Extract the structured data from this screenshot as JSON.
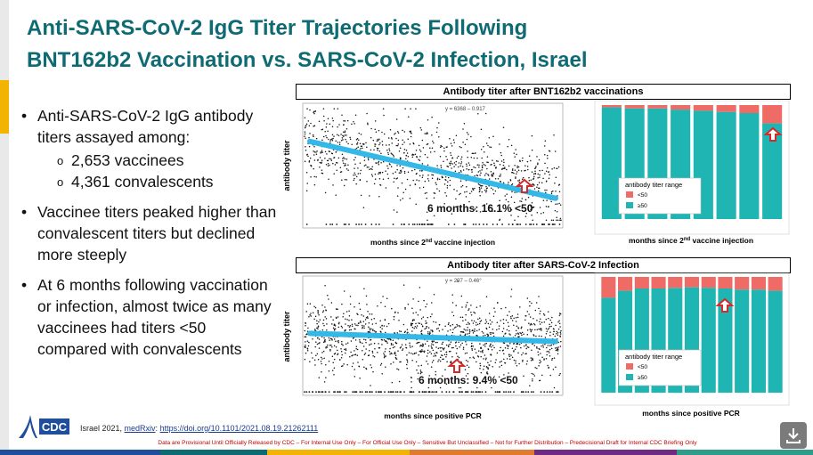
{
  "title": {
    "line1": "Anti-SARS-CoV-2 IgG Titer Trajectories Following",
    "line2": "BNT162b2 Vaccination vs. SARS-CoV-2 Infection, Israel"
  },
  "bullets": [
    {
      "text": "Anti-SARS-CoV-2 IgG antibody titers assayed among:",
      "sub": [
        "2,653 vaccinees",
        "4,361 convalescents"
      ]
    },
    {
      "text": "Vaccinee titers peaked higher than convalescent titers but declined more steeply",
      "sub": []
    },
    {
      "text": "At 6 months following vaccination or infection, almost twice as many vaccinees had titers <50 compared with convalescents",
      "sub": []
    }
  ],
  "citation": {
    "prefix": "Israel 2021, ",
    "source": "medRxiv",
    "sep": ": ",
    "url": "https://doi.org/10.1101/2021.08.19.21262111"
  },
  "disclaimer": "Data are Provisional Until Officially Released by CDC – For Internal Use Only – For Official Use Only – Sensitive But Unclassified – Not for Further Distribution – Predecisional Draft for Internal CDC Briefing Only",
  "logo": {
    "text": "CDC",
    "icon": "cdc-logo-icon"
  },
  "download_icon": "download-icon",
  "colors": {
    "title": "#0e6b73",
    "regression": "#33b8e8",
    "teal_bar": "#1fb5b3",
    "red_bar": "#ef6b66",
    "highlight_red": "#d42a2a"
  },
  "chart_data": [
    {
      "type": "scatter",
      "header": "Antibody titer after BNT162b2 vaccinations",
      "ylabel": "antibody titer",
      "xlabel": "months since 2nd vaccine injection",
      "xlabel_parts": [
        "months since 2",
        "nd",
        " vaccine injection"
      ],
      "equation": "y = 6368 – 0.917",
      "annotation": "6 months: 16.1% <50",
      "n": 2653,
      "trend": {
        "start": 0.7,
        "end": 0.23
      },
      "spread": {
        "center_start": 0.68,
        "center_end": 0.32
      }
    },
    {
      "type": "bar",
      "stacked": true,
      "normalized": true,
      "xlabel": "months since 2nd vaccine injection",
      "xlabel_parts": [
        "months since 2",
        "nd",
        " vaccine injection"
      ],
      "legend": {
        "title": "antibody titer range",
        "items": [
          "<50",
          "≥50"
        ]
      },
      "series_below50_fraction": [
        0.02,
        0.03,
        0.03,
        0.04,
        0.05,
        0.06,
        0.07,
        0.161
      ]
    },
    {
      "type": "scatter",
      "header": "Antibody titer after SARS-CoV-2 Infection",
      "ylabel": "antibody titer",
      "xlabel": "months since positive PCR",
      "equation": "y = 297 – 0.46°",
      "annotation": "6 months: 9.4% <50",
      "n": 4361,
      "trend": {
        "start": 0.52,
        "end": 0.45
      },
      "spread": {
        "center_start": 0.5,
        "center_end": 0.45
      }
    },
    {
      "type": "bar",
      "stacked": true,
      "normalized": true,
      "xlabel": "months since positive PCR",
      "legend": {
        "title": "antibody titer range",
        "items": [
          "<50",
          "≥50"
        ]
      },
      "series_below50_fraction": [
        0.18,
        0.12,
        0.1,
        0.1,
        0.095,
        0.09,
        0.094,
        0.1,
        0.11,
        0.11,
        0.12
      ]
    }
  ]
}
